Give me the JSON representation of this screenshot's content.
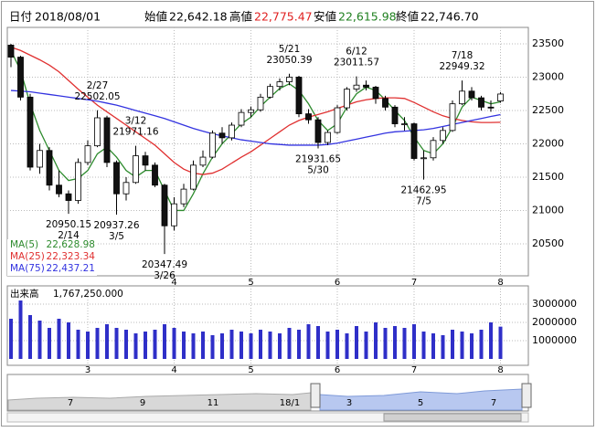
{
  "header": {
    "date_label": "日付",
    "date": "2018/08/01",
    "open_label": "始値",
    "open": "22,642.18",
    "high_label": "高値",
    "high": "22,775.47",
    "low_label": "安値",
    "low": "22,615.98",
    "close_label": "終値",
    "close": "22,746.70"
  },
  "chart_data": {
    "type": "candlestick",
    "categories": [
      null,
      null,
      null,
      null,
      null,
      null,
      null,
      null,
      "3",
      null,
      null,
      null,
      null,
      null,
      null,
      null,
      null,
      "4",
      null,
      null,
      null,
      null,
      null,
      null,
      null,
      "5",
      null,
      null,
      null,
      null,
      null,
      null,
      null,
      null,
      "6",
      null,
      null,
      null,
      null,
      null,
      null,
      null,
      "7",
      null,
      null,
      null,
      null,
      null,
      null,
      null,
      null,
      "8"
    ],
    "open": [
      23480,
      23300,
      22700,
      21650,
      21900,
      21380,
      21250,
      21150,
      21720,
      21970,
      22390,
      21720,
      21250,
      21420,
      21820,
      21680,
      21380,
      20770,
      21100,
      21320,
      21680,
      21800,
      22160,
      22090,
      22280,
      22470,
      22510,
      22700,
      22860,
      22930,
      23000,
      22450,
      22360,
      22020,
      22170,
      22540,
      22820,
      22880,
      22850,
      22680,
      22550,
      22300,
      22300,
      21780,
      21790,
      22050,
      22200,
      22600,
      22790,
      22690,
      22550,
      22642.18
    ],
    "high": [
      23500,
      23320,
      22750,
      22000,
      21950,
      21600,
      21300,
      21780,
      22050,
      22502.05,
      22420,
      21750,
      21500,
      21971.16,
      21880,
      21720,
      21400,
      21200,
      21400,
      21750,
      21900,
      22200,
      22250,
      22320,
      22520,
      22560,
      22750,
      22900,
      22980,
      23050.39,
      23020,
      22520,
      22400,
      22200,
      22580,
      22850,
      23011.57,
      22950,
      22870,
      22720,
      22580,
      22400,
      22320,
      21900,
      22100,
      22250,
      22650,
      22949.32,
      22850,
      22720,
      22650,
      22775.47
    ],
    "low": [
      23150,
      22650,
      21600,
      21550,
      21300,
      21200,
      20950.15,
      21100,
      21680,
      21950,
      21650,
      20937.26,
      21150,
      21400,
      21600,
      21350,
      20347.49,
      20700,
      21050,
      21300,
      21650,
      21780,
      22000,
      22050,
      22250,
      22400,
      22480,
      22680,
      22800,
      22880,
      22400,
      22300,
      21931.65,
      21980,
      22150,
      22500,
      22780,
      22800,
      22600,
      22500,
      22250,
      22200,
      21750,
      21462.95,
      21750,
      22000,
      22180,
      22580,
      22650,
      22500,
      22480,
      22615.98
    ],
    "close": [
      23300,
      22700,
      21650,
      21900,
      21380,
      21250,
      21150,
      21720,
      21970,
      22390,
      21720,
      21250,
      21420,
      21820,
      21680,
      21380,
      20770,
      21100,
      21320,
      21680,
      21800,
      22160,
      22090,
      22280,
      22470,
      22510,
      22700,
      22860,
      22930,
      23000,
      22450,
      22360,
      22020,
      22170,
      22540,
      22820,
      22880,
      22850,
      22680,
      22550,
      22300,
      22300,
      21780,
      21790,
      22050,
      22200,
      22600,
      22790,
      22690,
      22550,
      22540,
      22746.7
    ],
    "series": [
      {
        "name": "MA(5)",
        "color": "#2e8b2e",
        "legend_value": "22,628.98",
        "values": [
          23400,
          23100,
          22600,
          22200,
          21900,
          21600,
          21450,
          21480,
          21600,
          21850,
          21950,
          21800,
          21600,
          21500,
          21600,
          21600,
          21300,
          21000,
          21000,
          21250,
          21550,
          21800,
          22000,
          22150,
          22300,
          22400,
          22560,
          22700,
          22830,
          22900,
          22800,
          22600,
          22350,
          22200,
          22300,
          22550,
          22750,
          22850,
          22800,
          22660,
          22500,
          22350,
          22100,
          21900,
          21850,
          22000,
          22250,
          22550,
          22700,
          22650,
          22600,
          22628.98
        ]
      },
      {
        "name": "MA(25)",
        "color": "#e03030",
        "legend_value": "22,323.34",
        "values": [
          23450,
          23400,
          23330,
          23260,
          23180,
          23080,
          22950,
          22820,
          22700,
          22580,
          22480,
          22380,
          22280,
          22180,
          22080,
          21980,
          21850,
          21720,
          21620,
          21560,
          21540,
          21560,
          21620,
          21710,
          21800,
          21880,
          21980,
          22080,
          22180,
          22280,
          22350,
          22400,
          22440,
          22480,
          22530,
          22580,
          22630,
          22660,
          22680,
          22690,
          22690,
          22680,
          22620,
          22550,
          22480,
          22420,
          22380,
          22350,
          22330,
          22320,
          22320,
          22323.34
        ]
      },
      {
        "name": "MA(75)",
        "color": "#3333e0",
        "legend_value": "22,437.21",
        "values": [
          22800,
          22790,
          22780,
          22760,
          22740,
          22720,
          22700,
          22680,
          22660,
          22640,
          22610,
          22580,
          22540,
          22500,
          22460,
          22420,
          22380,
          22330,
          22280,
          22230,
          22190,
          22150,
          22120,
          22090,
          22060,
          22040,
          22020,
          22000,
          21990,
          21980,
          21980,
          21980,
          21980,
          21990,
          22010,
          22040,
          22070,
          22100,
          22130,
          22160,
          22180,
          22190,
          22200,
          22210,
          22230,
          22260,
          22290,
          22320,
          22350,
          22380,
          22410,
          22437.21
        ]
      }
    ],
    "annotations": [
      {
        "date": "2/14",
        "value": 20950.15
      },
      {
        "date": "2/27",
        "value": 22502.05
      },
      {
        "date": "3/5",
        "value": 20937.26
      },
      {
        "date": "3/12",
        "value": 21971.16
      },
      {
        "date": "3/26",
        "value": 20347.49
      },
      {
        "date": "5/21",
        "value": 23050.39
      },
      {
        "date": "5/30",
        "value": 21931.65
      },
      {
        "date": "6/12",
        "value": 23011.57
      },
      {
        "date": "7/5",
        "value": 21462.95
      },
      {
        "date": "7/18",
        "value": 22949.32
      }
    ],
    "ylim": [
      20020,
      23746
    ],
    "yticks": [
      20500,
      21000,
      21500,
      22000,
      22500,
      23000,
      23500
    ],
    "grid": true,
    "volume": {
      "title": "出来高",
      "value_label": "1,767,250.000",
      "color": "#2f2fc8",
      "values": [
        2200000,
        3200000,
        2400000,
        2100000,
        1700000,
        2200000,
        2000000,
        1600000,
        1500000,
        1700000,
        1900000,
        1700000,
        1600000,
        1400000,
        1500000,
        1600000,
        1900000,
        1700000,
        1500000,
        1400000,
        1500000,
        1300000,
        1400000,
        1600000,
        1500000,
        1400000,
        1600000,
        1500000,
        1400000,
        1700000,
        1600000,
        1900000,
        1800000,
        1500000,
        1600000,
        1400000,
        1800000,
        1500000,
        2000000,
        1700000,
        1800000,
        1700000,
        1900000,
        1500000,
        1400000,
        1300000,
        1600000,
        1500000,
        1400000,
        1600000,
        2000000,
        1767250
      ],
      "ylim": [
        0,
        3900000
      ],
      "yticks": [
        1000000,
        2000000,
        3000000
      ]
    }
  },
  "navigator": {
    "labels": [
      "7",
      "9",
      "11",
      "18/1",
      "3",
      "5",
      "7"
    ]
  }
}
